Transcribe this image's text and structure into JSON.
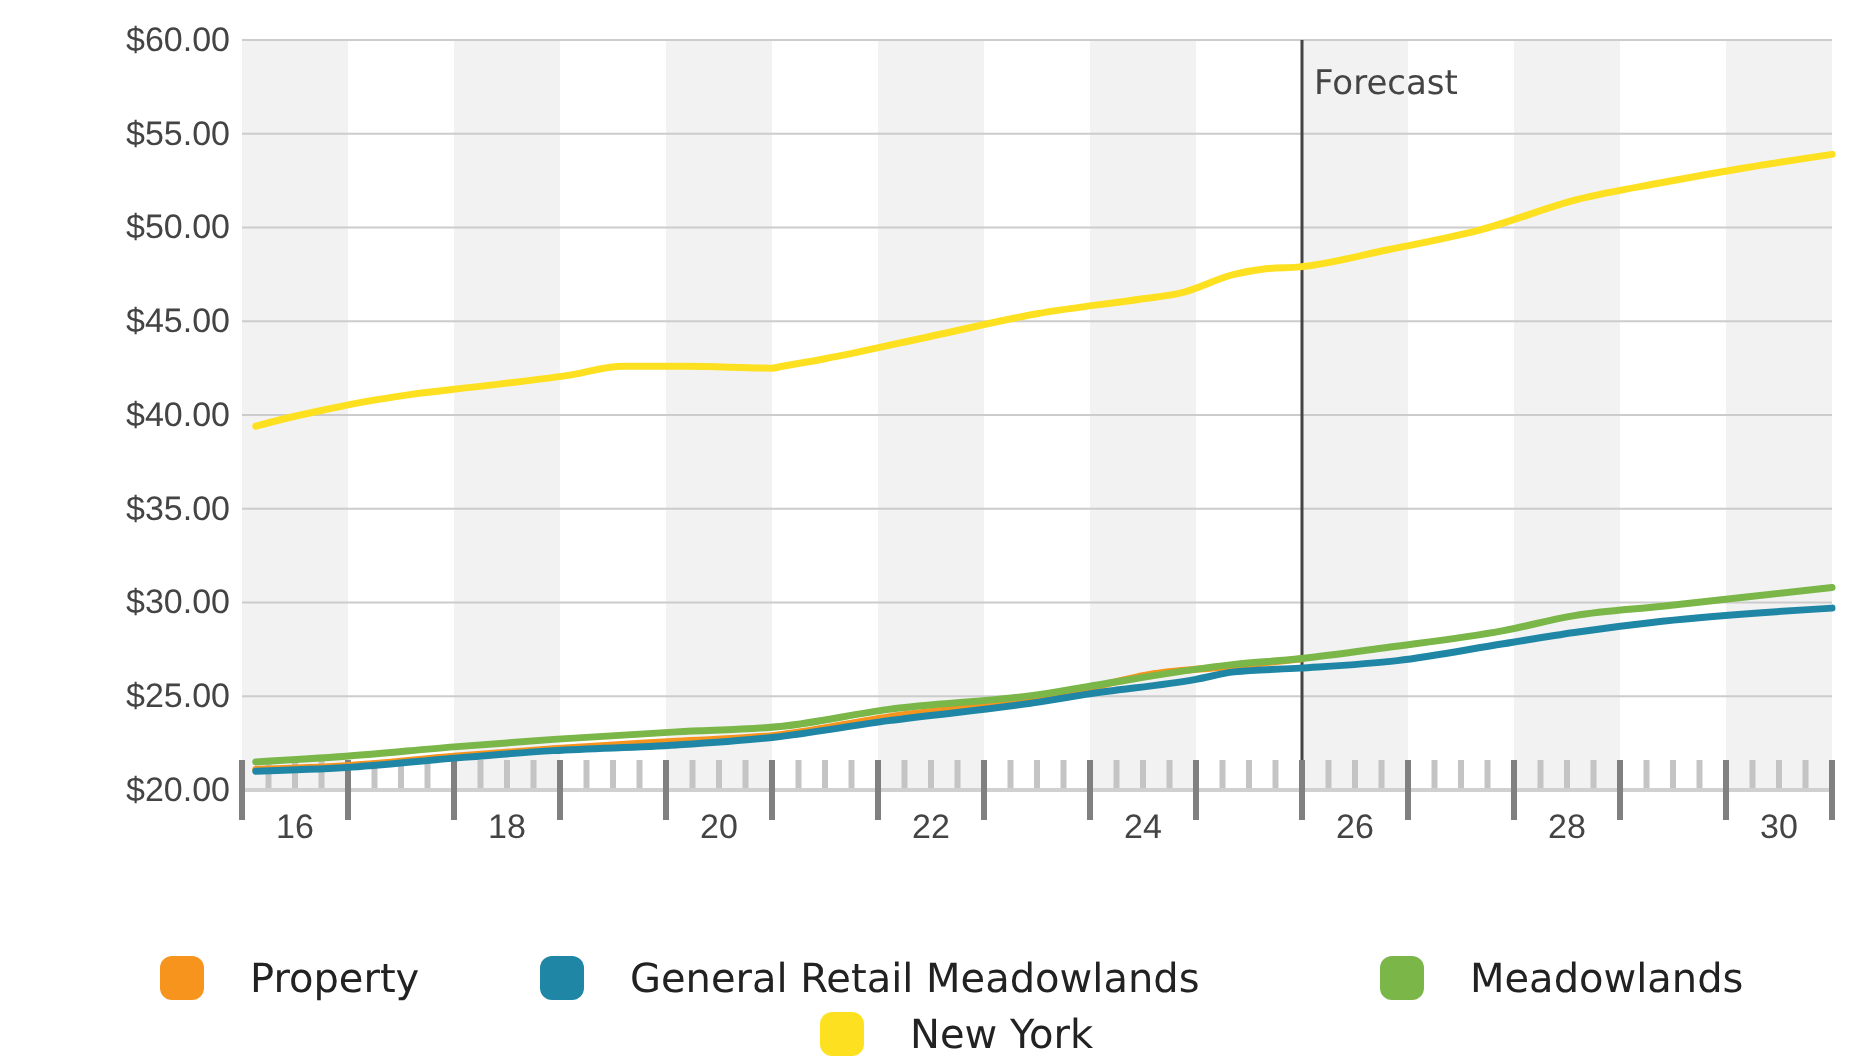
{
  "chart_data": {
    "type": "line",
    "xlim": [
      15.5,
      30.5
    ],
    "ylim": [
      20,
      60
    ],
    "yticks": [
      {
        "value": 20,
        "label": "$20.00"
      },
      {
        "value": 25,
        "label": "$25.00"
      },
      {
        "value": 30,
        "label": "$30.00"
      },
      {
        "value": 35,
        "label": "$35.00"
      },
      {
        "value": 40,
        "label": "$40.00"
      },
      {
        "value": 45,
        "label": "$45.00"
      },
      {
        "value": 50,
        "label": "$50.00"
      },
      {
        "value": 55,
        "label": "$55.00"
      },
      {
        "value": 60,
        "label": "$60.00"
      }
    ],
    "xticks": [
      16,
      18,
      20,
      22,
      24,
      26,
      28,
      30
    ],
    "bands": [
      {
        "axis": "x",
        "from": 15.5,
        "to": 16.5,
        "color": "#f2f2f2"
      },
      {
        "axis": "x",
        "from": 17.5,
        "to": 18.5,
        "color": "#f2f2f2"
      },
      {
        "axis": "x",
        "from": 19.5,
        "to": 20.5,
        "color": "#f2f2f2"
      },
      {
        "axis": "x",
        "from": 21.5,
        "to": 22.5,
        "color": "#f2f2f2"
      },
      {
        "axis": "x",
        "from": 23.5,
        "to": 24.5,
        "color": "#f2f2f2"
      },
      {
        "axis": "x",
        "from": 25.5,
        "to": 26.5,
        "color": "#f2f2f2"
      },
      {
        "axis": "x",
        "from": 27.5,
        "to": 28.5,
        "color": "#f2f2f2"
      },
      {
        "axis": "x",
        "from": 29.5,
        "to": 30.5,
        "color": "#f2f2f2"
      }
    ],
    "grid": "y",
    "legend": "bottom",
    "line_style": "solid",
    "marker": "none",
    "ref_lines": [
      {
        "axis": "x",
        "value": 25.5,
        "label": "Forecast",
        "color": "#444444"
      }
    ],
    "series": [
      {
        "name": "Property",
        "color": "#f7941d",
        "x": [
          15.63,
          16.48,
          17.5,
          18.44,
          19.6,
          20.5,
          21.6,
          23.03,
          23.46,
          24.1,
          24.86,
          25.5
        ],
        "values": [
          21.1,
          21.3,
          21.8,
          22.2,
          22.6,
          22.9,
          23.9,
          24.9,
          25.4,
          26.2,
          26.6,
          27.0
        ]
      },
      {
        "name": "General Retail Meadowlands",
        "color": "#1f87a5",
        "x": [
          15.63,
          16.48,
          17.5,
          18.44,
          19.6,
          20.5,
          21.6,
          23.03,
          23.46,
          24.5,
          24.86,
          25.48,
          26.4,
          27.4,
          28.07,
          28.9,
          30.5
        ],
        "values": [
          21.0,
          21.2,
          21.7,
          22.1,
          22.4,
          22.8,
          23.7,
          24.7,
          25.1,
          25.9,
          26.3,
          26.5,
          26.9,
          27.8,
          28.4,
          29.0,
          29.7
        ]
      },
      {
        "name": "Meadowlands",
        "color": "#7ab648",
        "x": [
          15.63,
          16.48,
          17.5,
          18.44,
          19.6,
          20.6,
          21.6,
          23.03,
          23.46,
          24.86,
          25.48,
          26.3,
          27.4,
          28.07,
          28.9,
          30.5
        ],
        "values": [
          21.5,
          21.8,
          22.3,
          22.7,
          23.1,
          23.4,
          24.3,
          25.1,
          25.5,
          26.7,
          27.0,
          27.6,
          28.5,
          29.3,
          29.8,
          30.8
        ]
      },
      {
        "name": "New York",
        "color": "#fde020",
        "x": [
          15.63,
          15.9,
          16.3,
          16.65,
          17.1,
          17.7,
          18.56,
          19.1,
          19.7,
          20.5,
          20.6,
          21.0,
          22.0,
          23.0,
          24.0,
          24.35,
          24.86,
          25.16,
          25.48,
          26.3,
          27.2,
          28.1,
          28.9,
          29.7,
          30.5
        ],
        "values": [
          39.4,
          39.8,
          40.3,
          40.7,
          41.1,
          41.5,
          42.1,
          42.6,
          42.6,
          42.5,
          42.6,
          43.0,
          44.2,
          45.4,
          46.2,
          46.5,
          47.5,
          47.8,
          47.9,
          48.8,
          49.9,
          51.5,
          52.4,
          53.2,
          53.9
        ]
      }
    ]
  }
}
